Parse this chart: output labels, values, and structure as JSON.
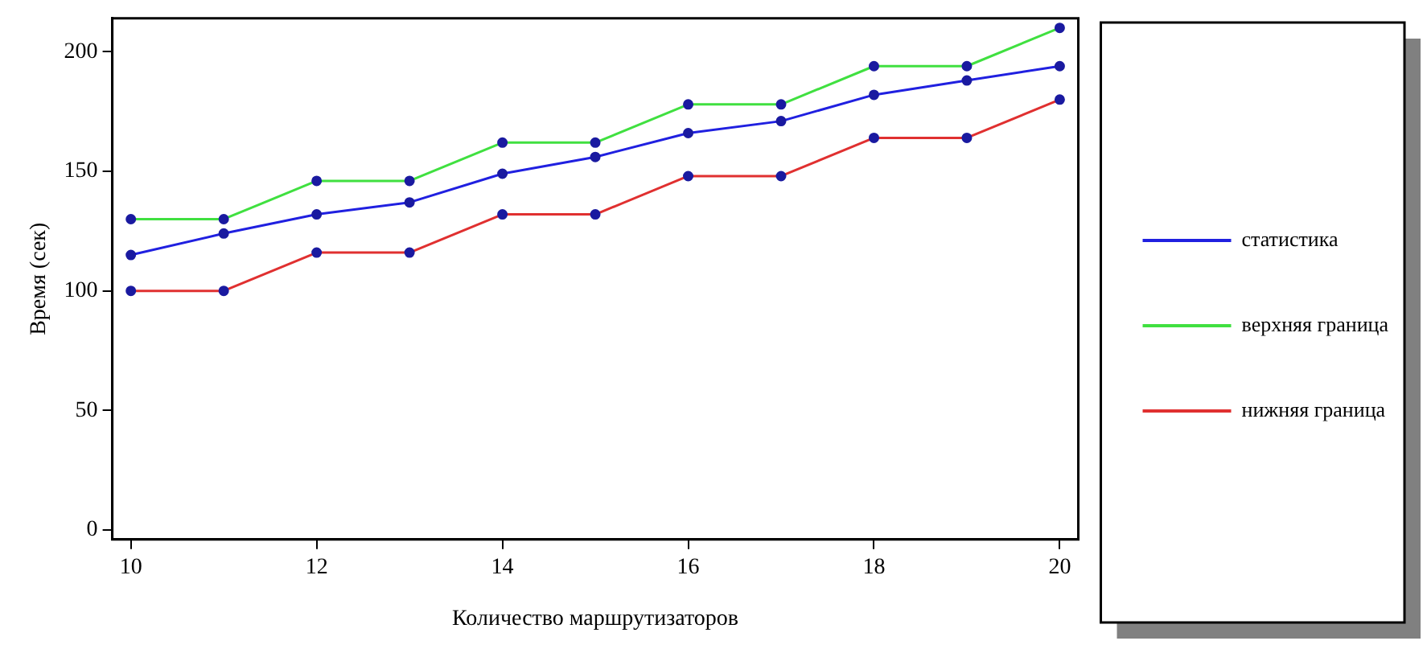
{
  "chart_data": {
    "type": "line",
    "xlabel": "Количество маршрутизаторов",
    "ylabel": "Время (сек)",
    "x": [
      10,
      11,
      12,
      13,
      14,
      15,
      16,
      17,
      18,
      19,
      20
    ],
    "series": [
      {
        "name": "статистика",
        "color": "#2020e0",
        "values": [
          115,
          124,
          132,
          137,
          149,
          156,
          166,
          171,
          182,
          188,
          194
        ]
      },
      {
        "name": "верхняя граница",
        "color": "#40e040",
        "values": [
          130,
          130,
          146,
          146,
          162,
          162,
          178,
          178,
          194,
          194,
          210
        ]
      },
      {
        "name": "нижняя граница",
        "color": "#e03030",
        "values": [
          100,
          100,
          116,
          116,
          132,
          132,
          148,
          148,
          164,
          164,
          180
        ]
      }
    ],
    "xlim": [
      9.8,
      20.2
    ],
    "xticks": [
      10,
      12,
      14,
      16,
      18,
      20
    ],
    "ylim": [
      -4,
      214
    ],
    "yticks": [
      0,
      50,
      100,
      150,
      200
    ],
    "marker": "circle",
    "line_style": "solid",
    "legend": "right"
  }
}
